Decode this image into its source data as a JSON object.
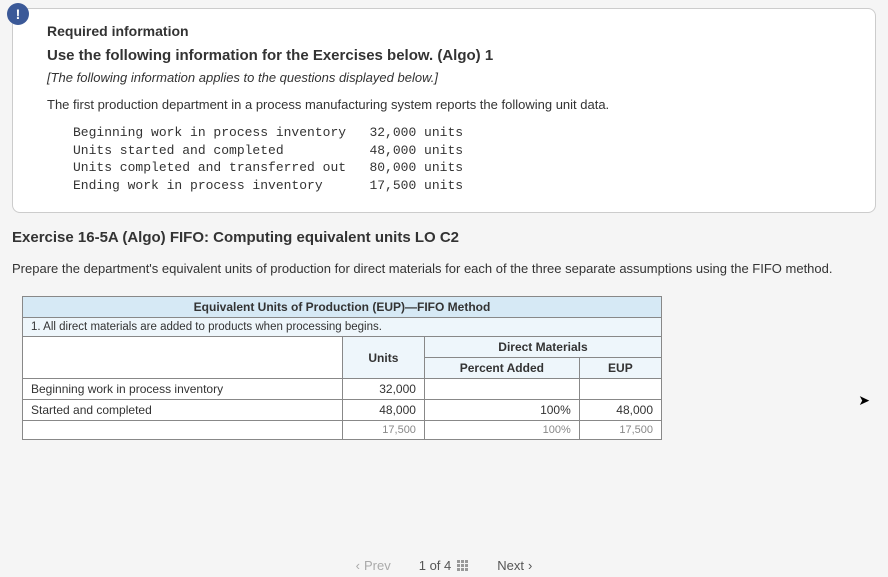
{
  "infobox": {
    "required_label": "Required information",
    "use_label": "Use the following information for the Exercises below. (Algo) 1",
    "italic_note": "[The following information applies to the questions displayed below.]",
    "intro": "The first production department in a process manufacturing system reports the following unit data.",
    "unit_data": {
      "rows": [
        {
          "label": "Beginning work in process inventory",
          "value": "32,000 units"
        },
        {
          "label": "Units started and completed",
          "value": "48,000 units"
        },
        {
          "label": "Units completed and transferred out",
          "value": "80,000 units"
        },
        {
          "label": "Ending work in process inventory",
          "value": "17,500 units"
        }
      ],
      "label_col_width_ch": 38
    }
  },
  "exercise": {
    "title": "Exercise 16-5A (Algo) FIFO: Computing equivalent units LO C2",
    "instruction": "Prepare the department's equivalent units of production for direct materials for each of the three separate assumptions using the FIFO method."
  },
  "table": {
    "header_main": "Equivalent Units of Production (EUP)—FIFO Method",
    "assumption_label": "1. All direct materials are added to products when processing begins.",
    "col_units": "Units",
    "group_dm": "Direct Materials",
    "col_pct": "Percent Added",
    "col_eup": "EUP",
    "rows": [
      {
        "label": "Beginning work in process inventory",
        "units": "32,000",
        "pct": "",
        "eup": ""
      },
      {
        "label": "Started and completed",
        "units": "48,000",
        "pct": "100%",
        "eup": "48,000"
      }
    ],
    "cut_row": {
      "label_partial": "",
      "units": "17,500",
      "pct": "100%",
      "eup": "17,500"
    },
    "colors": {
      "header_bg": "#d6e9f5",
      "subheader_bg": "#eef6fb",
      "border": "#888888"
    }
  },
  "nav": {
    "prev": "Prev",
    "counter": "1 of 4",
    "next": "Next"
  }
}
